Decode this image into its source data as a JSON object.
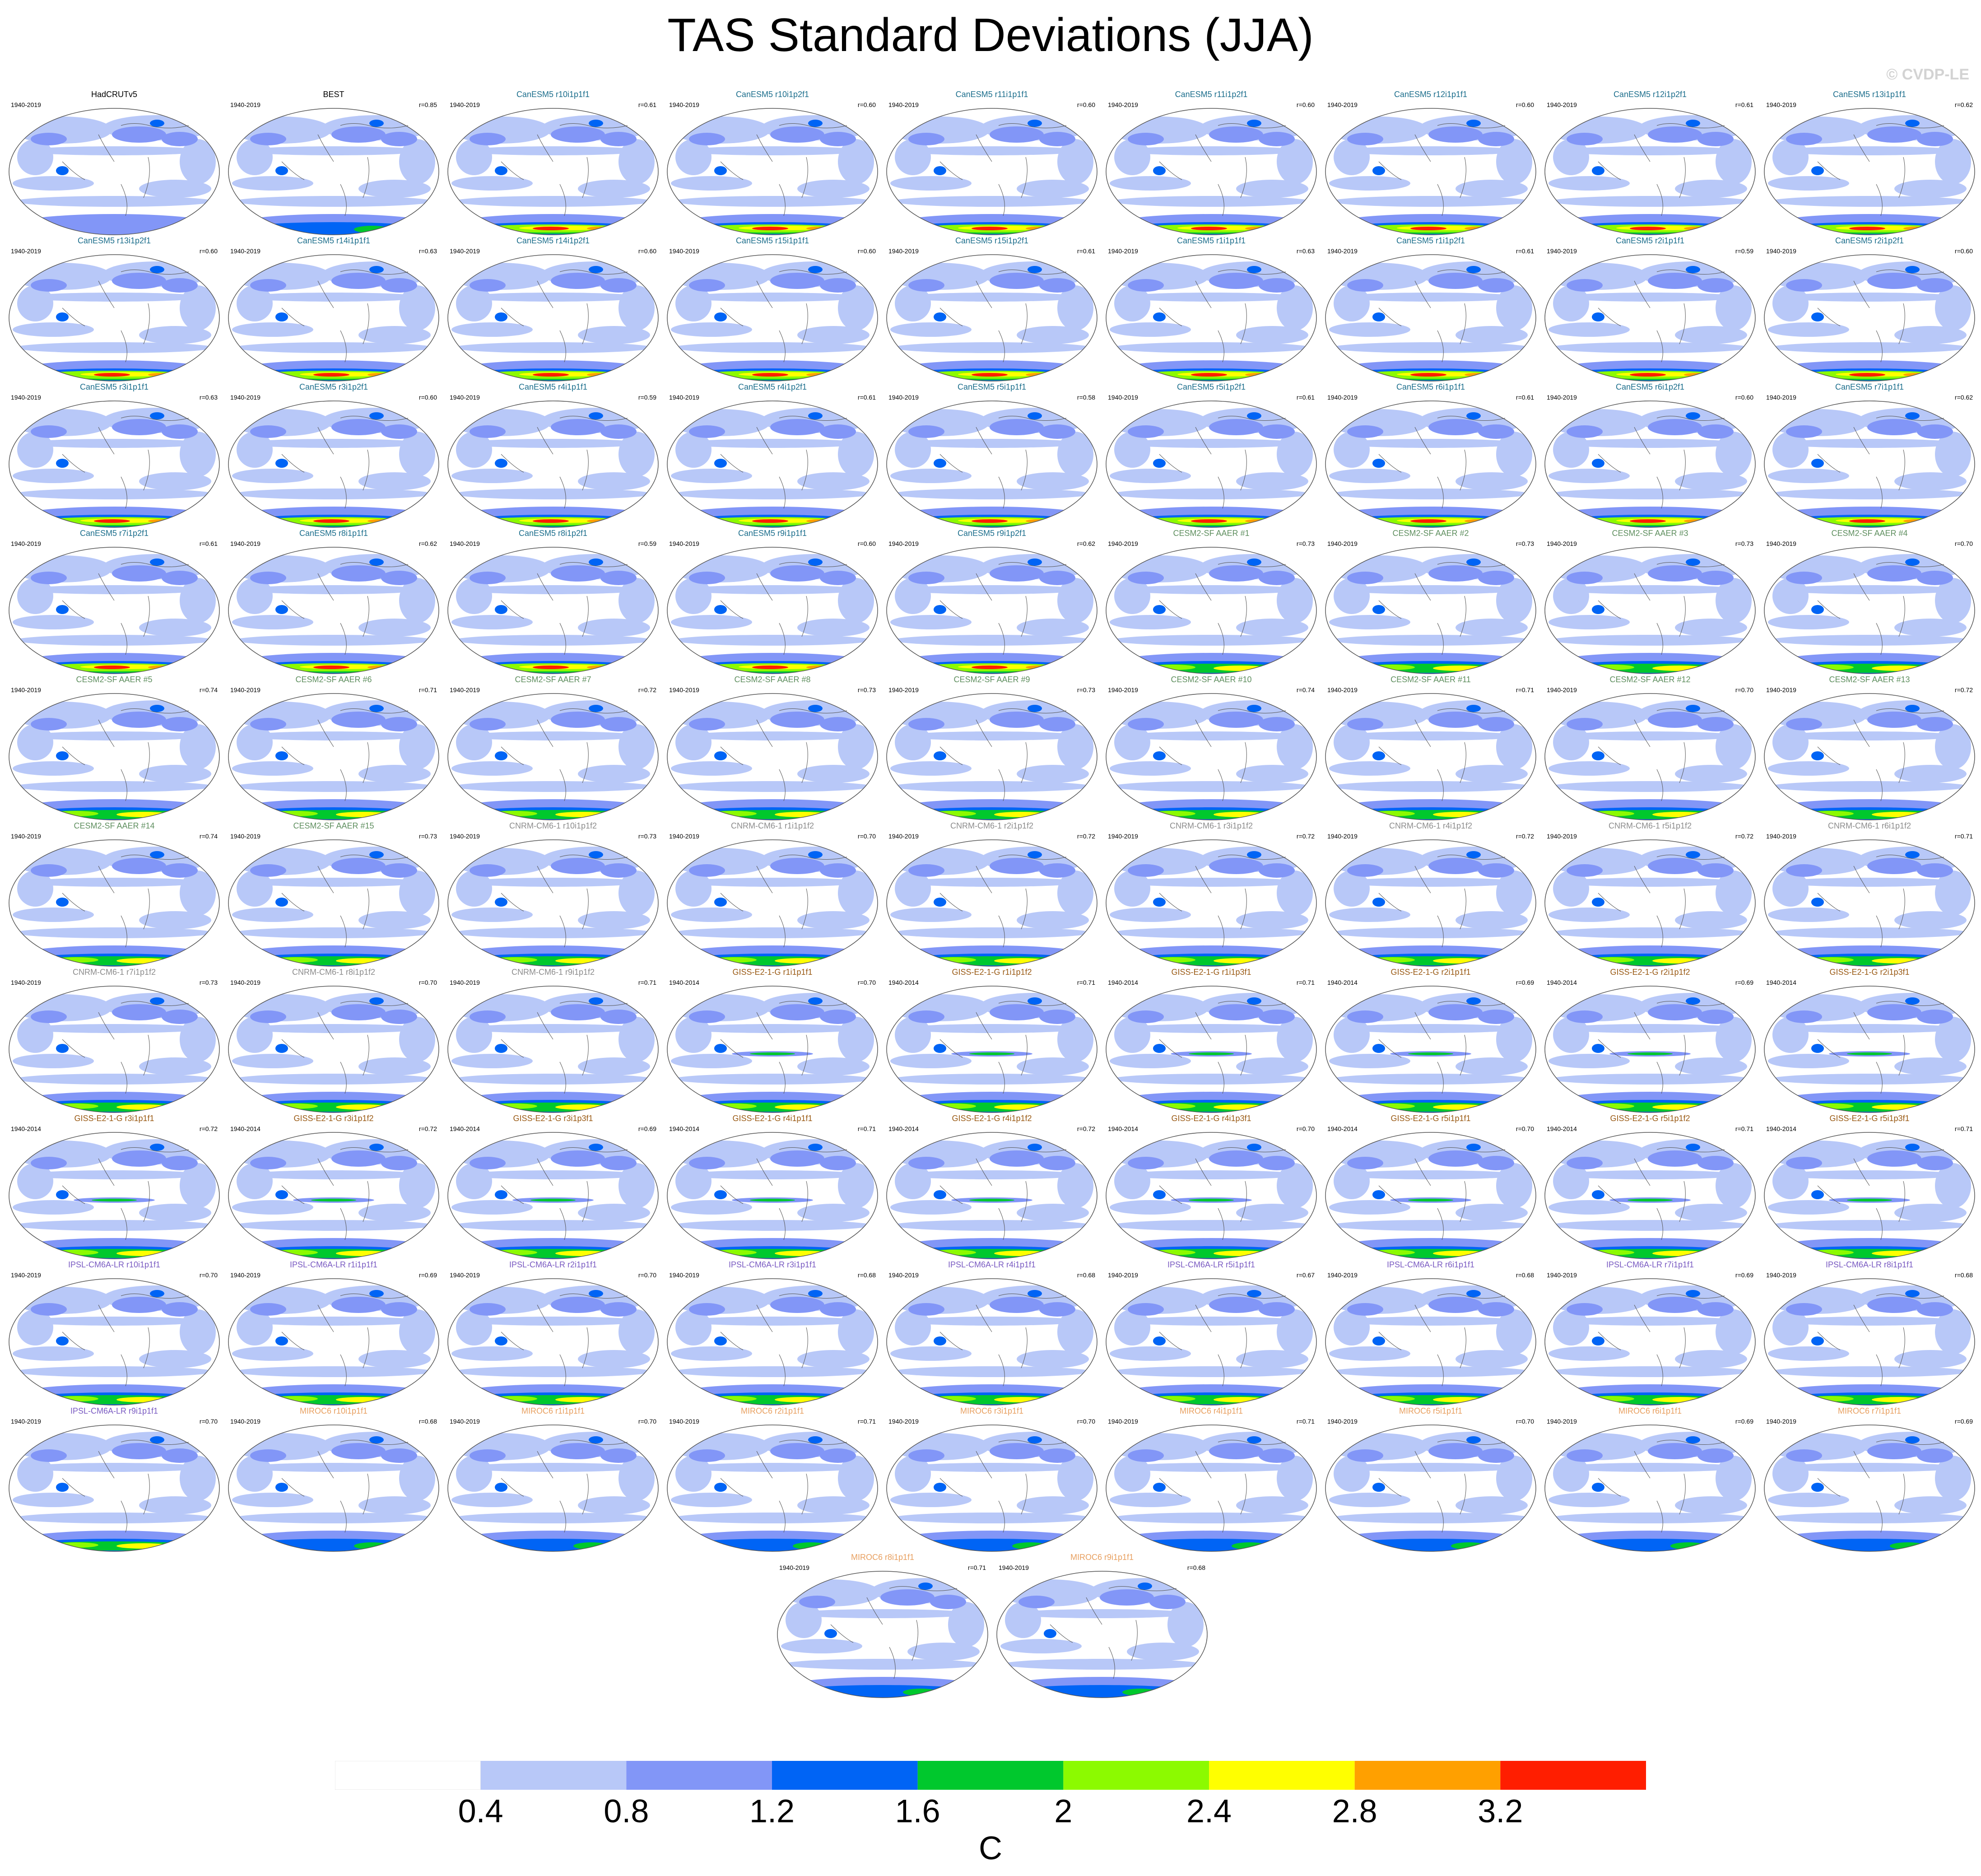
{
  "title": "TAS Standard Deviations (JJA)",
  "credit": "© CVDP-LE",
  "colorbar": {
    "label": "C",
    "ticks": [
      "0.4",
      "0.8",
      "1.2",
      "1.6",
      "2",
      "2.4",
      "2.8",
      "3.2"
    ],
    "colors": [
      "#ffffff",
      "#b8c8f8",
      "#8296f7",
      "#0064f5",
      "#00c82d",
      "#8cfa00",
      "#ffff00",
      "#ffa000",
      "#ff1e00"
    ]
  },
  "panels": [
    {
      "name": "HadCRUTv5",
      "years": "1940-2019",
      "r": "",
      "color": "#000000",
      "hot": 1
    },
    {
      "name": "BEST",
      "years": "1940-2019",
      "r": "r=0.85",
      "color": "#000000",
      "hot": 2
    },
    {
      "name": "CanESM5 r10i1p1f1",
      "years": "1940-2019",
      "r": "r=0.61",
      "color": "#1c6e8c",
      "hot": 4
    },
    {
      "name": "CanESM5 r10i1p2f1",
      "years": "1940-2019",
      "r": "r=0.60",
      "color": "#1c6e8c",
      "hot": 4
    },
    {
      "name": "CanESM5 r11i1p1f1",
      "years": "1940-2019",
      "r": "r=0.60",
      "color": "#1c6e8c",
      "hot": 4
    },
    {
      "name": "CanESM5 r11i1p2f1",
      "years": "1940-2019",
      "r": "r=0.60",
      "color": "#1c6e8c",
      "hot": 4
    },
    {
      "name": "CanESM5 r12i1p1f1",
      "years": "1940-2019",
      "r": "r=0.60",
      "color": "#1c6e8c",
      "hot": 4
    },
    {
      "name": "CanESM5 r12i1p2f1",
      "years": "1940-2019",
      "r": "r=0.61",
      "color": "#1c6e8c",
      "hot": 4
    },
    {
      "name": "CanESM5 r13i1p1f1",
      "years": "1940-2019",
      "r": "r=0.62",
      "color": "#1c6e8c",
      "hot": 4
    },
    {
      "name": "CanESM5 r13i1p2f1",
      "years": "1940-2019",
      "r": "r=0.60",
      "color": "#1c6e8c",
      "hot": 4
    },
    {
      "name": "CanESM5 r14i1p1f1",
      "years": "1940-2019",
      "r": "r=0.63",
      "color": "#1c6e8c",
      "hot": 4
    },
    {
      "name": "CanESM5 r14i1p2f1",
      "years": "1940-2019",
      "r": "r=0.60",
      "color": "#1c6e8c",
      "hot": 4
    },
    {
      "name": "CanESM5 r15i1p1f1",
      "years": "1940-2019",
      "r": "r=0.60",
      "color": "#1c6e8c",
      "hot": 4
    },
    {
      "name": "CanESM5 r15i1p2f1",
      "years": "1940-2019",
      "r": "r=0.61",
      "color": "#1c6e8c",
      "hot": 4
    },
    {
      "name": "CanESM5 r1i1p1f1",
      "years": "1940-2019",
      "r": "r=0.63",
      "color": "#1c6e8c",
      "hot": 4
    },
    {
      "name": "CanESM5 r1i1p2f1",
      "years": "1940-2019",
      "r": "r=0.61",
      "color": "#1c6e8c",
      "hot": 4
    },
    {
      "name": "CanESM5 r2i1p1f1",
      "years": "1940-2019",
      "r": "r=0.59",
      "color": "#1c6e8c",
      "hot": 4
    },
    {
      "name": "CanESM5 r2i1p2f1",
      "years": "1940-2019",
      "r": "r=0.60",
      "color": "#1c6e8c",
      "hot": 4
    },
    {
      "name": "CanESM5 r3i1p1f1",
      "years": "1940-2019",
      "r": "r=0.63",
      "color": "#1c6e8c",
      "hot": 4
    },
    {
      "name": "CanESM5 r3i1p2f1",
      "years": "1940-2019",
      "r": "r=0.60",
      "color": "#1c6e8c",
      "hot": 4
    },
    {
      "name": "CanESM5 r4i1p1f1",
      "years": "1940-2019",
      "r": "r=0.59",
      "color": "#1c6e8c",
      "hot": 4
    },
    {
      "name": "CanESM5 r4i1p2f1",
      "years": "1940-2019",
      "r": "r=0.61",
      "color": "#1c6e8c",
      "hot": 4
    },
    {
      "name": "CanESM5 r5i1p1f1",
      "years": "1940-2019",
      "r": "r=0.58",
      "color": "#1c6e8c",
      "hot": 4
    },
    {
      "name": "CanESM5 r5i1p2f1",
      "years": "1940-2019",
      "r": "r=0.61",
      "color": "#1c6e8c",
      "hot": 4
    },
    {
      "name": "CanESM5 r6i1p1f1",
      "years": "1940-2019",
      "r": "r=0.61",
      "color": "#1c6e8c",
      "hot": 4
    },
    {
      "name": "CanESM5 r6i1p2f1",
      "years": "1940-2019",
      "r": "r=0.60",
      "color": "#1c6e8c",
      "hot": 4
    },
    {
      "name": "CanESM5 r7i1p1f1",
      "years": "1940-2019",
      "r": "r=0.62",
      "color": "#1c6e8c",
      "hot": 4
    },
    {
      "name": "CanESM5 r7i1p2f1",
      "years": "1940-2019",
      "r": "r=0.61",
      "color": "#1c6e8c",
      "hot": 4
    },
    {
      "name": "CanESM5 r8i1p1f1",
      "years": "1940-2019",
      "r": "r=0.62",
      "color": "#1c6e8c",
      "hot": 4
    },
    {
      "name": "CanESM5 r8i1p2f1",
      "years": "1940-2019",
      "r": "r=0.59",
      "color": "#1c6e8c",
      "hot": 4
    },
    {
      "name": "CanESM5 r9i1p1f1",
      "years": "1940-2019",
      "r": "r=0.60",
      "color": "#1c6e8c",
      "hot": 4
    },
    {
      "name": "CanESM5 r9i1p2f1",
      "years": "1940-2019",
      "r": "r=0.62",
      "color": "#1c6e8c",
      "hot": 4
    },
    {
      "name": "CESM2-SF AAER #1",
      "years": "1940-2019",
      "r": "r=0.73",
      "color": "#5f8f5f",
      "hot": 3
    },
    {
      "name": "CESM2-SF AAER #2",
      "years": "1940-2019",
      "r": "r=0.73",
      "color": "#5f8f5f",
      "hot": 3
    },
    {
      "name": "CESM2-SF AAER #3",
      "years": "1940-2019",
      "r": "r=0.73",
      "color": "#5f8f5f",
      "hot": 3
    },
    {
      "name": "CESM2-SF AAER #4",
      "years": "1940-2019",
      "r": "r=0.70",
      "color": "#5f8f5f",
      "hot": 3
    },
    {
      "name": "CESM2-SF AAER #5",
      "years": "1940-2019",
      "r": "r=0.74",
      "color": "#5f8f5f",
      "hot": 3
    },
    {
      "name": "CESM2-SF AAER #6",
      "years": "1940-2019",
      "r": "r=0.71",
      "color": "#5f8f5f",
      "hot": 3
    },
    {
      "name": "CESM2-SF AAER #7",
      "years": "1940-2019",
      "r": "r=0.72",
      "color": "#5f8f5f",
      "hot": 3
    },
    {
      "name": "CESM2-SF AAER #8",
      "years": "1940-2019",
      "r": "r=0.73",
      "color": "#5f8f5f",
      "hot": 3
    },
    {
      "name": "CESM2-SF AAER #9",
      "years": "1940-2019",
      "r": "r=0.73",
      "color": "#5f8f5f",
      "hot": 3
    },
    {
      "name": "CESM2-SF AAER #10",
      "years": "1940-2019",
      "r": "r=0.74",
      "color": "#5f8f5f",
      "hot": 3
    },
    {
      "name": "CESM2-SF AAER #11",
      "years": "1940-2019",
      "r": "r=0.71",
      "color": "#5f8f5f",
      "hot": 3
    },
    {
      "name": "CESM2-SF AAER #12",
      "years": "1940-2019",
      "r": "r=0.70",
      "color": "#5f8f5f",
      "hot": 3
    },
    {
      "name": "CESM2-SF AAER #13",
      "years": "1940-2019",
      "r": "r=0.72",
      "color": "#5f8f5f",
      "hot": 3
    },
    {
      "name": "CESM2-SF AAER #14",
      "years": "1940-2019",
      "r": "r=0.74",
      "color": "#5f8f5f",
      "hot": 3
    },
    {
      "name": "CESM2-SF AAER #15",
      "years": "1940-2019",
      "r": "r=0.73",
      "color": "#5f8f5f",
      "hot": 3
    },
    {
      "name": "CNRM-CM6-1 r10i1p1f2",
      "years": "1940-2019",
      "r": "r=0.73",
      "color": "#8c8c8c",
      "hot": 3
    },
    {
      "name": "CNRM-CM6-1 r1i1p1f2",
      "years": "1940-2019",
      "r": "r=0.70",
      "color": "#8c8c8c",
      "hot": 3
    },
    {
      "name": "CNRM-CM6-1 r2i1p1f2",
      "years": "1940-2019",
      "r": "r=0.72",
      "color": "#8c8c8c",
      "hot": 3
    },
    {
      "name": "CNRM-CM6-1 r3i1p1f2",
      "years": "1940-2019",
      "r": "r=0.72",
      "color": "#8c8c8c",
      "hot": 3
    },
    {
      "name": "CNRM-CM6-1 r4i1p1f2",
      "years": "1940-2019",
      "r": "r=0.72",
      "color": "#8c8c8c",
      "hot": 3
    },
    {
      "name": "CNRM-CM6-1 r5i1p1f2",
      "years": "1940-2019",
      "r": "r=0.72",
      "color": "#8c8c8c",
      "hot": 3
    },
    {
      "name": "CNRM-CM6-1 r6i1p1f2",
      "years": "1940-2019",
      "r": "r=0.71",
      "color": "#8c8c8c",
      "hot": 3
    },
    {
      "name": "CNRM-CM6-1 r7i1p1f2",
      "years": "1940-2019",
      "r": "r=0.73",
      "color": "#8c8c8c",
      "hot": 3
    },
    {
      "name": "CNRM-CM6-1 r8i1p1f2",
      "years": "1940-2019",
      "r": "r=0.70",
      "color": "#8c8c8c",
      "hot": 3
    },
    {
      "name": "CNRM-CM6-1 r9i1p1f2",
      "years": "1940-2019",
      "r": "r=0.71",
      "color": "#8c8c8c",
      "hot": 3
    },
    {
      "name": "GISS-E2-1-G r1i1p1f1",
      "years": "1940-2014",
      "r": "r=0.70",
      "color": "#9a5a14",
      "hot": 3,
      "eq": true
    },
    {
      "name": "GISS-E2-1-G r1i1p1f2",
      "years": "1940-2014",
      "r": "r=0.71",
      "color": "#9a5a14",
      "hot": 3,
      "eq": true
    },
    {
      "name": "GISS-E2-1-G r1i1p3f1",
      "years": "1940-2014",
      "r": "r=0.71",
      "color": "#9a5a14",
      "hot": 3,
      "eq": true
    },
    {
      "name": "GISS-E2-1-G r2i1p1f1",
      "years": "1940-2014",
      "r": "r=0.69",
      "color": "#9a5a14",
      "hot": 3,
      "eq": true
    },
    {
      "name": "GISS-E2-1-G r2i1p1f2",
      "years": "1940-2014",
      "r": "r=0.69",
      "color": "#9a5a14",
      "hot": 3,
      "eq": true
    },
    {
      "name": "GISS-E2-1-G r2i1p3f1",
      "years": "1940-2014",
      "r": "",
      "color": "#9a5a14",
      "hot": 3,
      "eq": true
    },
    {
      "name": "GISS-E2-1-G r3i1p1f1",
      "years": "1940-2014",
      "r": "r=0.72",
      "color": "#9a5a14",
      "hot": 3,
      "eq": true
    },
    {
      "name": "GISS-E2-1-G r3i1p1f2",
      "years": "1940-2014",
      "r": "r=0.72",
      "color": "#9a5a14",
      "hot": 3,
      "eq": true
    },
    {
      "name": "GISS-E2-1-G r3i1p3f1",
      "years": "1940-2014",
      "r": "r=0.69",
      "color": "#9a5a14",
      "hot": 3,
      "eq": true
    },
    {
      "name": "GISS-E2-1-G r4i1p1f1",
      "years": "1940-2014",
      "r": "r=0.71",
      "color": "#9a5a14",
      "hot": 3,
      "eq": true
    },
    {
      "name": "GISS-E2-1-G r4i1p1f2",
      "years": "1940-2014",
      "r": "r=0.72",
      "color": "#9a5a14",
      "hot": 3,
      "eq": true
    },
    {
      "name": "GISS-E2-1-G r4i1p3f1",
      "years": "1940-2014",
      "r": "r=0.70",
      "color": "#9a5a14",
      "hot": 3,
      "eq": true
    },
    {
      "name": "GISS-E2-1-G r5i1p1f1",
      "years": "1940-2014",
      "r": "r=0.70",
      "color": "#9a5a14",
      "hot": 3,
      "eq": true
    },
    {
      "name": "GISS-E2-1-G r5i1p1f2",
      "years": "1940-2014",
      "r": "r=0.71",
      "color": "#9a5a14",
      "hot": 3,
      "eq": true
    },
    {
      "name": "GISS-E2-1-G r5i1p3f1",
      "years": "1940-2014",
      "r": "r=0.71",
      "color": "#9a5a14",
      "hot": 3,
      "eq": true
    },
    {
      "name": "IPSL-CM6A-LR r10i1p1f1",
      "years": "1940-2019",
      "r": "r=0.70",
      "color": "#7a5bc2",
      "hot": 3
    },
    {
      "name": "IPSL-CM6A-LR r1i1p1f1",
      "years": "1940-2019",
      "r": "r=0.69",
      "color": "#7a5bc2",
      "hot": 3
    },
    {
      "name": "IPSL-CM6A-LR r2i1p1f1",
      "years": "1940-2019",
      "r": "r=0.70",
      "color": "#7a5bc2",
      "hot": 3
    },
    {
      "name": "IPSL-CM6A-LR r3i1p1f1",
      "years": "1940-2019",
      "r": "r=0.68",
      "color": "#7a5bc2",
      "hot": 3
    },
    {
      "name": "IPSL-CM6A-LR r4i1p1f1",
      "years": "1940-2019",
      "r": "r=0.68",
      "color": "#7a5bc2",
      "hot": 3
    },
    {
      "name": "IPSL-CM6A-LR r5i1p1f1",
      "years": "1940-2019",
      "r": "r=0.67",
      "color": "#7a5bc2",
      "hot": 3
    },
    {
      "name": "IPSL-CM6A-LR r6i1p1f1",
      "years": "1940-2019",
      "r": "r=0.68",
      "color": "#7a5bc2",
      "hot": 3
    },
    {
      "name": "IPSL-CM6A-LR r7i1p1f1",
      "years": "1940-2019",
      "r": "r=0.69",
      "color": "#7a5bc2",
      "hot": 3
    },
    {
      "name": "IPSL-CM6A-LR r8i1p1f1",
      "years": "1940-2019",
      "r": "r=0.68",
      "color": "#7a5bc2",
      "hot": 3
    },
    {
      "name": "IPSL-CM6A-LR r9i1p1f1",
      "years": "1940-2019",
      "r": "r=0.70",
      "color": "#7a5bc2",
      "hot": 3
    },
    {
      "name": "MIROC6 r10i1p1f1",
      "years": "1940-2019",
      "r": "r=0.68",
      "color": "#e8a060",
      "hot": 2
    },
    {
      "name": "MIROC6 r1i1p1f1",
      "years": "1940-2019",
      "r": "r=0.70",
      "color": "#e8a060",
      "hot": 2
    },
    {
      "name": "MIROC6 r2i1p1f1",
      "years": "1940-2019",
      "r": "r=0.71",
      "color": "#e8a060",
      "hot": 2
    },
    {
      "name": "MIROC6 r3i1p1f1",
      "years": "1940-2019",
      "r": "r=0.70",
      "color": "#e8a060",
      "hot": 2
    },
    {
      "name": "MIROC6 r4i1p1f1",
      "years": "1940-2019",
      "r": "r=0.71",
      "color": "#e8a060",
      "hot": 2
    },
    {
      "name": "MIROC6 r5i1p1f1",
      "years": "1940-2019",
      "r": "r=0.70",
      "color": "#e8a060",
      "hot": 2
    },
    {
      "name": "MIROC6 r6i1p1f1",
      "years": "1940-2019",
      "r": "r=0.69",
      "color": "#e8a060",
      "hot": 2
    },
    {
      "name": "MIROC6 r7i1p1f1",
      "years": "1940-2019",
      "r": "r=0.69",
      "color": "#e8a060",
      "hot": 2
    },
    {
      "name": "MIROC6 r8i1p1f1",
      "years": "1940-2019",
      "r": "r=0.71",
      "color": "#e8a060",
      "hot": 2
    },
    {
      "name": "MIROC6 r9i1p1f1",
      "years": "1940-2019",
      "r": "r=0.68",
      "color": "#e8a060",
      "hot": 2
    }
  ]
}
